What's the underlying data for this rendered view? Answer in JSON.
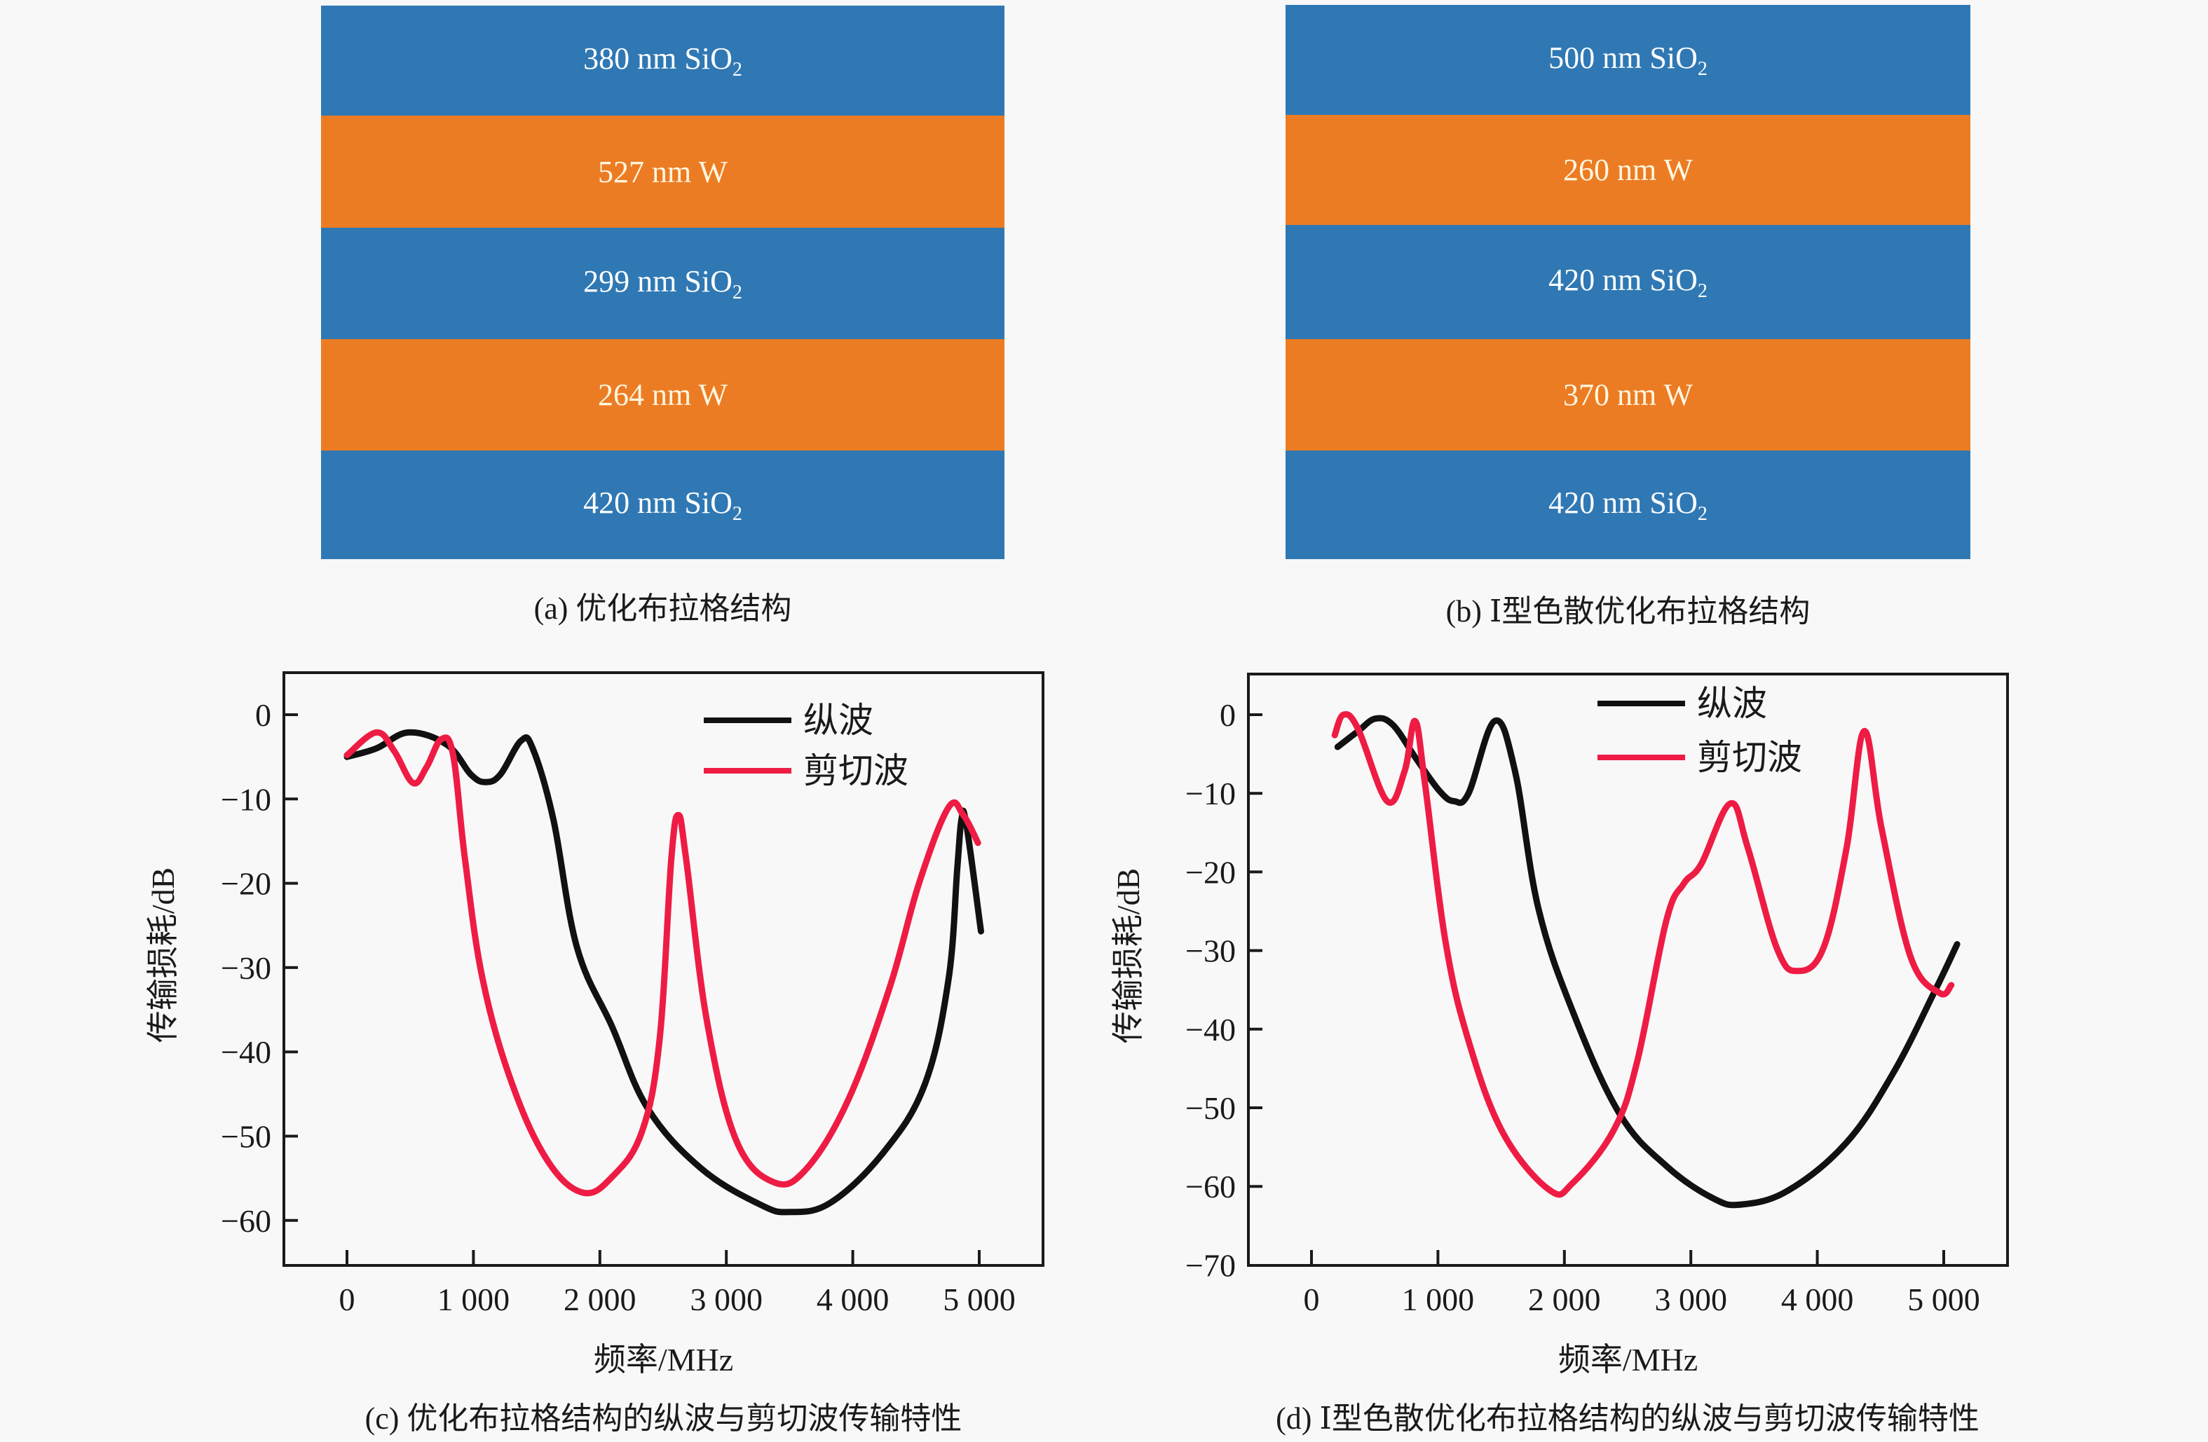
{
  "panel_a": {
    "layers": [
      {
        "thickness": "380 nm",
        "material": "SiO",
        "sub": "2",
        "type": "sio2"
      },
      {
        "thickness": "527 nm",
        "material": "W",
        "sub": "",
        "type": "w"
      },
      {
        "thickness": "299 nm",
        "material": "SiO",
        "sub": "2",
        "type": "sio2"
      },
      {
        "thickness": "264 nm",
        "material": "W",
        "sub": "",
        "type": "w"
      },
      {
        "thickness": "420 nm",
        "material": "SiO",
        "sub": "2",
        "type": "sio2"
      }
    ],
    "caption": "(a) 优化布拉格结构"
  },
  "panel_b": {
    "layers": [
      {
        "thickness": "500 nm",
        "material": "SiO",
        "sub": "2",
        "type": "sio2"
      },
      {
        "thickness": "260 nm",
        "material": "W",
        "sub": "",
        "type": "w"
      },
      {
        "thickness": "420 nm",
        "material": "SiO",
        "sub": "2",
        "type": "sio2"
      },
      {
        "thickness": "370 nm",
        "material": "W",
        "sub": "",
        "type": "w"
      },
      {
        "thickness": "420 nm",
        "material": "SiO",
        "sub": "2",
        "type": "sio2"
      }
    ],
    "caption": "(b) Ⅰ型色散优化布拉格结构"
  },
  "colors": {
    "sio2": "#2f78b4",
    "w": "#ec7c23",
    "longitudinal": "#111111",
    "shear": "#ee1c44"
  },
  "chart_data": [
    {
      "type": "line",
      "title": "(c) 优化布拉格结构的纵波与剪切波传输特性",
      "xlabel": "频率/MHz",
      "ylabel": "传输损耗/dB",
      "xlim": [
        -500,
        5500
      ],
      "ylim": [
        -65,
        5
      ],
      "xticks": [
        0,
        1000,
        2000,
        3000,
        4000,
        5000
      ],
      "xtick_labels": [
        "0",
        "1 000",
        "2 000",
        "3 000",
        "4 000",
        "5 000"
      ],
      "yticks": [
        0,
        -10,
        -20,
        -30,
        -40,
        -50,
        -60
      ],
      "ytick_labels": [
        "0",
        "−10",
        "−20",
        "−30",
        "−40",
        "−50",
        "−60"
      ],
      "legend_position": "top-right",
      "grid": false,
      "series": [
        {
          "name": "纵波",
          "color": "#111111",
          "x": [
            0,
            233,
            490,
            793,
            980,
            1096,
            1213,
            1376,
            1469,
            1632,
            1819,
            2099,
            2378,
            2798,
            3265,
            3498,
            3824,
            4244,
            4571,
            4757,
            4827,
            4860,
            4897,
            5014
          ],
          "y": [
            -5.0,
            -4.0,
            -2.1,
            -3.6,
            -7.1,
            -8.0,
            -7.1,
            -3.1,
            -4.0,
            -12.4,
            -27.6,
            -37.1,
            -46.7,
            -53.8,
            -58.1,
            -59.0,
            -57.9,
            -51.9,
            -43.8,
            -31.4,
            -18.1,
            -12.4,
            -12.9,
            -25.7
          ]
        },
        {
          "name": "剪切波",
          "color": "#ee1c44",
          "x": [
            0,
            233,
            373,
            522,
            630,
            746,
            840,
            933,
            1073,
            1306,
            1586,
            1866,
            2099,
            2332,
            2472,
            2565,
            2621,
            2682,
            2845,
            3078,
            3381,
            3638,
            3964,
            4291,
            4524,
            4757,
            4874,
            4990
          ],
          "y": [
            -4.8,
            -2.1,
            -4.3,
            -8.1,
            -6.2,
            -2.9,
            -4.8,
            -17.1,
            -31.4,
            -43.8,
            -52.9,
            -56.7,
            -54.8,
            -49.5,
            -38.6,
            -17.1,
            -11.9,
            -17.1,
            -36.2,
            -50.5,
            -55.5,
            -53.8,
            -45.7,
            -32.4,
            -20.0,
            -11.0,
            -11.9,
            -15.2
          ]
        }
      ]
    },
    {
      "type": "line",
      "title": "(d) Ⅰ型色散优化布拉格结构的纵波与剪切波传输特性",
      "xlabel": "频率/MHz",
      "ylabel": "传输损耗/dB",
      "xlim": [
        -500,
        5500
      ],
      "ylim": [
        -70,
        5
      ],
      "xticks": [
        0,
        1000,
        2000,
        3000,
        4000,
        5000
      ],
      "xtick_labels": [
        "0",
        "1 000",
        "2 000",
        "3 000",
        "4 000",
        "5 000"
      ],
      "yticks": [
        0,
        -10,
        -20,
        -30,
        -40,
        -50,
        -60,
        -70
      ],
      "ytick_labels": [
        "0",
        "−10",
        "−20",
        "−30",
        "−40",
        "−50",
        "−60",
        "−70"
      ],
      "legend_position": "top-right",
      "grid": false,
      "series": [
        {
          "name": "纵波",
          "color": "#111111",
          "x": [
            207,
            368,
            506,
            644,
            828,
            1012,
            1127,
            1242,
            1449,
            1610,
            1794,
            2070,
            2438,
            2806,
            3174,
            3404,
            3772,
            4232,
            4600,
            4922,
            5106
          ],
          "y": [
            -4.1,
            -2.1,
            -0.5,
            -1.3,
            -5.6,
            -9.7,
            -11.0,
            -10.0,
            -0.8,
            -7.2,
            -24.6,
            -37.9,
            -50.8,
            -57.4,
            -61.5,
            -62.3,
            -60.5,
            -54.4,
            -45.6,
            -35.4,
            -29.2
          ]
        },
        {
          "name": "剪切波",
          "color": "#ee1c44",
          "x": [
            184,
            253,
            368,
            598,
            736,
            819,
            897,
            1058,
            1242,
            1518,
            1886,
            2070,
            2392,
            2576,
            2806,
            2944,
            3082,
            3312,
            3450,
            3680,
            3841,
            4048,
            4232,
            4370,
            4508,
            4738,
            4968,
            5060
          ],
          "y": [
            -2.6,
            0.0,
            -1.8,
            -11.0,
            -7.2,
            -0.8,
            -8.7,
            -28.7,
            -41.5,
            -53.3,
            -60.5,
            -59.5,
            -52.8,
            -44.1,
            -26.2,
            -21.5,
            -19.0,
            -11.3,
            -16.9,
            -29.7,
            -32.6,
            -29.7,
            -16.9,
            -2.1,
            -14.4,
            -30.8,
            -35.4,
            -34.4
          ]
        }
      ]
    }
  ]
}
